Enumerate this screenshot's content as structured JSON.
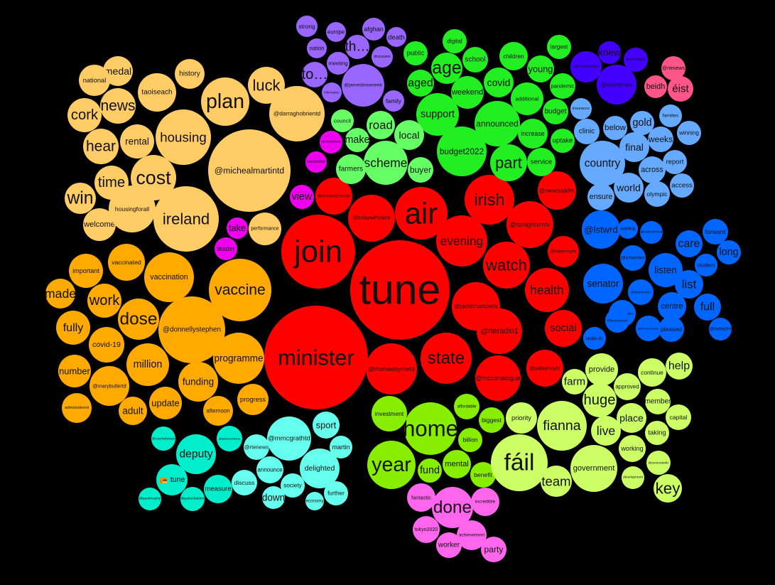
{
  "colors": {
    "background": "#000000",
    "light_orange": "#ffcc66",
    "orange": "#ffaa00",
    "red": "#ff0000",
    "purple": "#9966ff",
    "green": "#22ee22",
    "light_green": "#66ff66",
    "magenta": "#ee00ee",
    "indigo": "#4400ff",
    "pink": "#ff5588",
    "light_blue": "#66aaff",
    "blue": "#0066ff",
    "lime": "#88ee00",
    "yellow_green": "#ccff66",
    "violet": "#ff66ee",
    "cyan": "#00eecc",
    "light_cyan": "#66ffee"
  },
  "words": [
    {
      "text": "tune",
      "group": "red"
    },
    {
      "text": "join",
      "group": "red"
    },
    {
      "text": "minister",
      "group": "red"
    },
    {
      "text": "air",
      "group": "red"
    },
    {
      "text": "irish",
      "group": "red"
    },
    {
      "text": "evening",
      "group": "red"
    },
    {
      "text": "watch",
      "group": "red"
    },
    {
      "text": "state",
      "group": "red"
    },
    {
      "text": "health",
      "group": "red"
    },
    {
      "text": "social",
      "group": "red"
    },
    {
      "text": "@rteradio1",
      "group": "red"
    },
    {
      "text": "@jackfchambers",
      "group": "red"
    },
    {
      "text": "@tonightvmtv",
      "group": "red"
    },
    {
      "text": "@robertroyle",
      "group": "red"
    },
    {
      "text": "@newstalkfm",
      "group": "red"
    },
    {
      "text": "@todaywithclaire",
      "group": "red"
    },
    {
      "text": "@ossianbhrenan",
      "group": "red"
    },
    {
      "text": "@thomasbyrnetd",
      "group": "red"
    },
    {
      "text": "@mcconalogue",
      "group": "red"
    },
    {
      "text": "@patkennyirl",
      "group": "red"
    },
    {
      "text": "@michealmartintd",
      "group": "light_orange"
    },
    {
      "text": "@darraghobrientd",
      "group": "light_orange"
    },
    {
      "text": "plan",
      "group": "light_orange"
    },
    {
      "text": "luck",
      "group": "light_orange"
    },
    {
      "text": "ireland",
      "group": "light_orange"
    },
    {
      "text": "housing",
      "group": "light_orange"
    },
    {
      "text": "cost",
      "group": "light_orange"
    },
    {
      "text": "time",
      "group": "light_orange"
    },
    {
      "text": "win",
      "group": "light_orange"
    },
    {
      "text": "hear",
      "group": "light_orange"
    },
    {
      "text": "rental",
      "group": "light_orange"
    },
    {
      "text": "cork",
      "group": "light_orange"
    },
    {
      "text": "news",
      "group": "light_orange"
    },
    {
      "text": "taoiseach",
      "group": "light_orange"
    },
    {
      "text": "medal",
      "group": "light_orange"
    },
    {
      "text": "national",
      "group": "light_orange"
    },
    {
      "text": "history",
      "group": "light_orange"
    },
    {
      "text": "welcome",
      "group": "light_orange"
    },
    {
      "text": "housingforall",
      "group": "light_orange"
    },
    {
      "text": "performance",
      "group": "light_orange"
    },
    {
      "text": "vaccine",
      "group": "orange"
    },
    {
      "text": "@donnellystephen",
      "group": "orange"
    },
    {
      "text": "dose",
      "group": "orange"
    },
    {
      "text": "vaccination",
      "group": "orange"
    },
    {
      "text": "vaccinated",
      "group": "orange"
    },
    {
      "text": "million",
      "group": "orange"
    },
    {
      "text": "programme",
      "group": "orange"
    },
    {
      "text": "funding",
      "group": "orange"
    },
    {
      "text": "fully",
      "group": "orange"
    },
    {
      "text": "work",
      "group": "orange"
    },
    {
      "text": "made",
      "group": "orange"
    },
    {
      "text": "important",
      "group": "orange"
    },
    {
      "text": "covid-19",
      "group": "orange"
    },
    {
      "text": "number",
      "group": "orange"
    },
    {
      "text": "@marybutlertd",
      "group": "orange"
    },
    {
      "text": "administered",
      "group": "orange"
    },
    {
      "text": "adult",
      "group": "orange"
    },
    {
      "text": "update",
      "group": "orange"
    },
    {
      "text": "afternoon",
      "group": "orange"
    },
    {
      "text": "progress",
      "group": "orange"
    },
    {
      "text": "strong",
      "group": "purple"
    },
    {
      "text": "europe",
      "group": "purple"
    },
    {
      "text": "afghan",
      "group": "purple"
    },
    {
      "text": "death",
      "group": "purple"
    },
    {
      "text": "nation",
      "group": "purple"
    },
    {
      "text": "th…",
      "group": "purple"
    },
    {
      "text": "discussion",
      "group": "purple"
    },
    {
      "text": "meeting",
      "group": "purple"
    },
    {
      "text": "to…",
      "group": "purple"
    },
    {
      "text": "@jamesbrowneeti",
      "group": "purple"
    },
    {
      "text": "information",
      "group": "purple"
    },
    {
      "text": "family",
      "group": "purple"
    },
    {
      "text": "digital",
      "group": "green"
    },
    {
      "text": "public",
      "group": "green"
    },
    {
      "text": "school",
      "group": "green"
    },
    {
      "text": "age",
      "group": "green"
    },
    {
      "text": "children",
      "group": "green"
    },
    {
      "text": "largest",
      "group": "green"
    },
    {
      "text": "young",
      "group": "green"
    },
    {
      "text": "aged",
      "group": "green"
    },
    {
      "text": "weekend",
      "group": "green"
    },
    {
      "text": "covid",
      "group": "green"
    },
    {
      "text": "additional",
      "group": "green"
    },
    {
      "text": "pandemic",
      "group": "green"
    },
    {
      "text": "support",
      "group": "green"
    },
    {
      "text": "announced",
      "group": "green"
    },
    {
      "text": "budget",
      "group": "green"
    },
    {
      "text": "increase",
      "group": "green"
    },
    {
      "text": "uptake",
      "group": "green"
    },
    {
      "text": "budget2022",
      "group": "green"
    },
    {
      "text": "part",
      "group": "green"
    },
    {
      "text": "service",
      "group": "green"
    },
    {
      "text": "council",
      "group": "light_green"
    },
    {
      "text": "road",
      "group": "light_green"
    },
    {
      "text": "make",
      "group": "light_green"
    },
    {
      "text": "local",
      "group": "light_green"
    },
    {
      "text": "scheme",
      "group": "light_green"
    },
    {
      "text": "farmers",
      "group": "light_green"
    },
    {
      "text": "buyer",
      "group": "light_green"
    },
    {
      "text": "achievement",
      "group": "magenta"
    },
    {
      "text": "committee",
      "group": "magenta"
    },
    {
      "text": "view",
      "group": "magenta"
    },
    {
      "text": "take",
      "group": "magenta"
    },
    {
      "text": "leader",
      "group": "magenta"
    },
    {
      "text": "knew",
      "group": "indigo"
    },
    {
      "text": "@irishtimes",
      "group": "indigo"
    },
    {
      "text": "@irishtimesbiz",
      "group": "indigo"
    },
    {
      "text": "@rteradio1",
      "group": "indigo"
    },
    {
      "text": "@rtenews",
      "group": "pink"
    },
    {
      "text": "beidh",
      "group": "pink"
    },
    {
      "text": "éist",
      "group": "pink"
    },
    {
      "text": "insurance",
      "group": "light_blue"
    },
    {
      "text": "clinic",
      "group": "light_blue"
    },
    {
      "text": "below",
      "group": "light_blue"
    },
    {
      "text": "gold",
      "group": "light_blue"
    },
    {
      "text": "families",
      "group": "light_blue"
    },
    {
      "text": "winning",
      "group": "light_blue"
    },
    {
      "text": "weeks",
      "group": "light_blue"
    },
    {
      "text": "final",
      "group": "light_blue"
    },
    {
      "text": "country",
      "group": "light_blue"
    },
    {
      "text": "across",
      "group": "light_blue"
    },
    {
      "text": "report",
      "group": "light_blue"
    },
    {
      "text": "world",
      "group": "light_blue"
    },
    {
      "text": "access",
      "group": "light_blue"
    },
    {
      "text": "ensure",
      "group": "light_blue"
    },
    {
      "text": "olympic",
      "group": "light_blue"
    },
    {
      "text": "@lstwrd",
      "group": "blue"
    },
    {
      "text": "waiting",
      "group": "blue"
    },
    {
      "text": "@malcolmsbd",
      "group": "blue"
    },
    {
      "text": "forward",
      "group": "blue"
    },
    {
      "text": "care",
      "group": "blue"
    },
    {
      "text": "long",
      "group": "blue"
    },
    {
      "text": "@lchamber",
      "group": "blue"
    },
    {
      "text": "listen",
      "group": "blue"
    },
    {
      "text": "student",
      "group": "blue"
    },
    {
      "text": "senator",
      "group": "blue"
    },
    {
      "text": "list",
      "group": "blue"
    },
    {
      "text": "@davidcullinane",
      "group": "blue"
    },
    {
      "text": "@olivertmartin",
      "group": "blue"
    },
    {
      "text": "centre",
      "group": "blue"
    },
    {
      "text": "full",
      "group": "blue"
    },
    {
      "text": "@ministerbuilder",
      "group": "blue"
    },
    {
      "text": "@thetaoiseach",
      "group": "blue"
    },
    {
      "text": "pleased",
      "group": "blue"
    },
    {
      "text": "@todayfm",
      "group": "blue"
    },
    {
      "text": "walk-in",
      "group": "blue"
    },
    {
      "text": "home",
      "group": "lime"
    },
    {
      "text": "investment",
      "group": "lime"
    },
    {
      "text": "affordable",
      "group": "lime"
    },
    {
      "text": "biggest",
      "group": "lime"
    },
    {
      "text": "billion",
      "group": "lime"
    },
    {
      "text": "year",
      "group": "lime"
    },
    {
      "text": "fund",
      "group": "lime"
    },
    {
      "text": "mental",
      "group": "lime"
    },
    {
      "text": "benefit",
      "group": "lime"
    },
    {
      "text": "fáil",
      "group": "yellow_green"
    },
    {
      "text": "fianna",
      "group": "yellow_green"
    },
    {
      "text": "priority",
      "group": "yellow_green"
    },
    {
      "text": "farm",
      "group": "yellow_green"
    },
    {
      "text": "provide",
      "group": "yellow_green"
    },
    {
      "text": "continue",
      "group": "yellow_green"
    },
    {
      "text": "help",
      "group": "yellow_green"
    },
    {
      "text": "huge",
      "group": "yellow_green"
    },
    {
      "text": "approved",
      "group": "yellow_green"
    },
    {
      "text": "member",
      "group": "yellow_green"
    },
    {
      "text": "live",
      "group": "yellow_green"
    },
    {
      "text": "place",
      "group": "yellow_green"
    },
    {
      "text": "capital",
      "group": "yellow_green"
    },
    {
      "text": "taking",
      "group": "yellow_green"
    },
    {
      "text": "working",
      "group": "yellow_green"
    },
    {
      "text": "@connordevlin",
      "group": "yellow_green"
    },
    {
      "text": "government",
      "group": "yellow_green"
    },
    {
      "text": "team",
      "group": "yellow_green"
    },
    {
      "text": "development",
      "group": "yellow_green"
    },
    {
      "text": "key",
      "group": "yellow_green"
    },
    {
      "text": "fantastic",
      "group": "violet"
    },
    {
      "text": "done",
      "group": "violet"
    },
    {
      "text": "incredible",
      "group": "violet"
    },
    {
      "text": "tokyo2020",
      "group": "violet"
    },
    {
      "text": "achievement",
      "group": "violet"
    },
    {
      "text": "worker",
      "group": "violet"
    },
    {
      "text": "party",
      "group": "violet"
    },
    {
      "text": "@coachsbrendo",
      "group": "cyan"
    },
    {
      "text": "@taoiseachbarra",
      "group": "cyan"
    },
    {
      "text": "deputy",
      "group": "cyan"
    },
    {
      "text": "📻 tune",
      "group": "cyan"
    },
    {
      "text": "measure",
      "group": "cyan"
    },
    {
      "text": "@paulmurphy",
      "group": "cyan"
    },
    {
      "text": "@patmcfadden",
      "group": "cyan"
    },
    {
      "text": "@rtenews",
      "group": "light_cyan"
    },
    {
      "text": "@mmcgrathtd",
      "group": "light_cyan"
    },
    {
      "text": "sport",
      "group": "light_cyan"
    },
    {
      "text": "martin",
      "group": "light_cyan"
    },
    {
      "text": "delighted",
      "group": "light_cyan"
    },
    {
      "text": "announce",
      "group": "light_cyan"
    },
    {
      "text": "discuss",
      "group": "light_cyan"
    },
    {
      "text": "society",
      "group": "light_cyan"
    },
    {
      "text": "down",
      "group": "light_cyan"
    },
    {
      "text": "further",
      "group": "light_cyan"
    },
    {
      "text": "economy",
      "group": "light_cyan"
    }
  ]
}
